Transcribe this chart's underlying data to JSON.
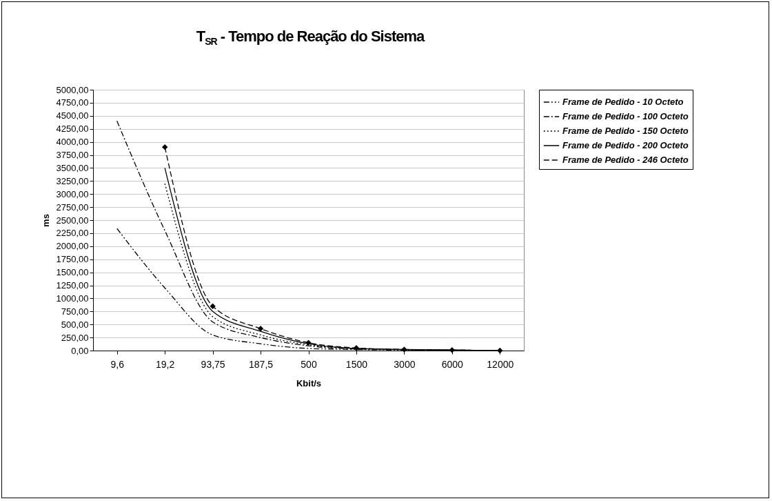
{
  "chart_data": {
    "type": "line",
    "title": "T$_{SR}$ - Tempo de Reação do Sistema",
    "xlabel": "Kbit/s",
    "ylabel": "ms",
    "categories": [
      "9,6",
      "19,2",
      "93,75",
      "187,5",
      "500",
      "1500",
      "3000",
      "6000",
      "12000"
    ],
    "series": [
      {
        "name": "Frame de Pedido - 10 Octeto",
        "color": "#000000",
        "line_style": "dashdotdot",
        "marker": "none",
        "values": [
          2340,
          1200,
          300,
          130,
          40,
          20,
          10,
          0,
          0
        ]
      },
      {
        "name": "Frame de Pedido - 100 Octeto",
        "color": "#000000",
        "line_style": "dashdot",
        "marker": "none",
        "values": [
          4400,
          2300,
          550,
          250,
          90,
          30,
          20,
          10,
          0
        ]
      },
      {
        "name": "Frame de Pedido - 150 Octeto",
        "color": "#000000",
        "line_style": "dotted",
        "marker": "none",
        "values": [
          null,
          3200,
          650,
          300,
          110,
          40,
          20,
          10,
          0
        ]
      },
      {
        "name": "Frame de Pedido - 200 Octeto",
        "color": "#000000",
        "line_style": "solid",
        "marker": "none",
        "values": [
          null,
          3500,
          750,
          370,
          130,
          40,
          20,
          10,
          0
        ]
      },
      {
        "name": "Frame de Pedido - 246 Octeto",
        "color": "#000000",
        "line_style": "dashed",
        "marker": "diamond",
        "values": [
          null,
          3900,
          850,
          420,
          150,
          50,
          20,
          10,
          0
        ]
      }
    ],
    "ylim": [
      0,
      5000
    ],
    "yticks": [
      {
        "value": 0,
        "label": "0,00"
      },
      {
        "value": 250,
        "label": "250,00"
      },
      {
        "value": 500,
        "label": "500,00"
      },
      {
        "value": 750,
        "label": "750,00"
      },
      {
        "value": 1000,
        "label": "1000,00"
      },
      {
        "value": 1250,
        "label": "1250,00"
      },
      {
        "value": 1500,
        "label": "1500,00"
      },
      {
        "value": 1750,
        "label": "1750,00"
      },
      {
        "value": 2000,
        "label": "2000,00"
      },
      {
        "value": 2250,
        "label": "2250,00"
      },
      {
        "value": 2500,
        "label": "2500,00"
      },
      {
        "value": 2750,
        "label": "2750,00"
      },
      {
        "value": 3000,
        "label": "3000,00"
      },
      {
        "value": 3250,
        "label": "3250,00"
      },
      {
        "value": 3500,
        "label": "3500,00"
      },
      {
        "value": 3750,
        "label": "3750,00"
      },
      {
        "value": 4000,
        "label": "4000,00"
      },
      {
        "value": 4250,
        "label": "4250,00"
      },
      {
        "value": 4500,
        "label": "4500,00"
      },
      {
        "value": 4750,
        "label": "4750,00"
      },
      {
        "value": 5000,
        "label": "5000,00"
      }
    ],
    "grid": "y",
    "legend": "right"
  }
}
